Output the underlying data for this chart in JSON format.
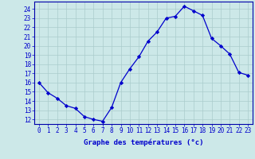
{
  "hours": [
    0,
    1,
    2,
    3,
    4,
    5,
    6,
    7,
    8,
    9,
    10,
    11,
    12,
    13,
    14,
    15,
    16,
    17,
    18,
    19,
    20,
    21,
    22,
    23
  ],
  "temps": [
    16.0,
    14.9,
    14.3,
    13.5,
    13.2,
    12.3,
    12.0,
    11.8,
    13.3,
    16.0,
    17.5,
    18.8,
    20.5,
    21.5,
    23.0,
    23.2,
    24.3,
    23.8,
    23.3,
    20.8,
    20.0,
    19.1,
    17.1,
    16.8
  ],
  "line_color": "#0000cc",
  "marker": "D",
  "marker_size": 2.2,
  "bg_color": "#cce8e8",
  "grid_color": "#aacccc",
  "xlabel": "Graphe des températures (°c)",
  "ylabel_ticks": [
    12,
    13,
    14,
    15,
    16,
    17,
    18,
    19,
    20,
    21,
    22,
    23,
    24
  ],
  "ylim": [
    11.5,
    24.8
  ],
  "xlim": [
    -0.5,
    23.5
  ],
  "axis_label_color": "#0000cc",
  "axis_tick_color": "#0000cc",
  "axis_line_color": "#0000aa",
  "tick_fontsize": 5.5,
  "xlabel_fontsize": 6.5
}
